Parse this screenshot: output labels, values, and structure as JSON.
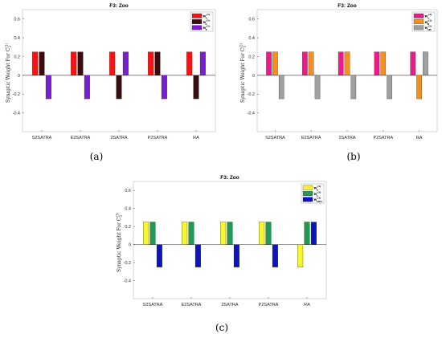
{
  "chart_data": [
    {
      "type": "bar",
      "title": "F3: Zoo",
      "caption": "(a)",
      "ylabel": "Synaptic Weight For C",
      "ylabel_sup": "(1)",
      "ylabel_sub": "3",
      "ylim": [
        -0.6,
        0.7
      ],
      "yticks": [
        "-0.4",
        "-0.2",
        "0",
        "0.2",
        "0.4",
        "0.6"
      ],
      "categories": [
        "S2SATRA",
        "E2SATRA",
        "2SATRA",
        "P2SATRA",
        "RA"
      ],
      "series": [
        {
          "name": "w",
          "sup": "(1)",
          "sub": "A",
          "color": "#ff1010",
          "values": [
            0.25,
            0.25,
            0.25,
            0.25,
            0.25
          ]
        },
        {
          "name": "w",
          "sup": "(1)",
          "sub": "C",
          "color": "#3a0c0c",
          "values": [
            0.25,
            0.25,
            -0.25,
            0.25,
            -0.25
          ]
        },
        {
          "name": "w",
          "sup": "(1)",
          "sub": "E",
          "color": "#7a1fd0",
          "values": [
            -0.25,
            -0.25,
            0.25,
            -0.25,
            0.25
          ]
        }
      ],
      "legend": "top-right"
    },
    {
      "type": "bar",
      "title": "F3: Zoo",
      "caption": "(b)",
      "ylabel": "Synaptic Weight For C",
      "ylabel_sup": "(2)",
      "ylabel_sub": "3",
      "ylim": [
        -0.6,
        0.7
      ],
      "yticks": [
        "-0.4",
        "-0.2",
        "0",
        "0.2",
        "0.4",
        "0.6"
      ],
      "categories": [
        "S2SATRA",
        "E2SATRA",
        "2SATRA",
        "P2SATRA",
        "RA"
      ],
      "series": [
        {
          "name": "w",
          "sup": "(2)",
          "sub": "A",
          "color": "#ee1a8a",
          "values": [
            0.25,
            0.25,
            0.25,
            0.25,
            0.25
          ]
        },
        {
          "name": "w",
          "sup": "(2)",
          "sub": "B",
          "color": "#f5901e",
          "values": [
            0.25,
            0.25,
            0.25,
            0.25,
            -0.25
          ]
        },
        {
          "name": "w",
          "sup": "(2)",
          "sub": "AB",
          "color": "#a0a0a0",
          "values": [
            -0.25,
            -0.25,
            -0.25,
            -0.25,
            0.25
          ]
        }
      ],
      "legend": "top-right"
    },
    {
      "type": "bar",
      "title": "F3: Zoo",
      "caption": "(c)",
      "ylabel": "Synaptic Weight For C",
      "ylabel_sup": "(3)",
      "ylabel_sub": "3",
      "ylim": [
        -0.6,
        0.7
      ],
      "yticks": [
        "-0.4",
        "-0.2",
        "0",
        "0.2",
        "0.4",
        "0.6"
      ],
      "categories": [
        "S2SATRA",
        "E2SATRA",
        "2SATRA",
        "P2SATRA",
        "RA"
      ],
      "series": [
        {
          "name": "w",
          "sup": "(3)",
          "sub": "A",
          "color": "#f6f62a",
          "values": [
            0.25,
            0.25,
            0.25,
            0.25,
            -0.25
          ]
        },
        {
          "name": "w",
          "sup": "(3)",
          "sub": "C",
          "color": "#1f9a4e",
          "values": [
            0.25,
            0.25,
            0.25,
            0.25,
            0.25
          ]
        },
        {
          "name": "w",
          "sup": "(3)",
          "sub": "ABC",
          "color": "#0a14c0",
          "values": [
            -0.25,
            -0.25,
            -0.25,
            -0.25,
            0.25
          ]
        }
      ],
      "legend": "top-right"
    }
  ]
}
